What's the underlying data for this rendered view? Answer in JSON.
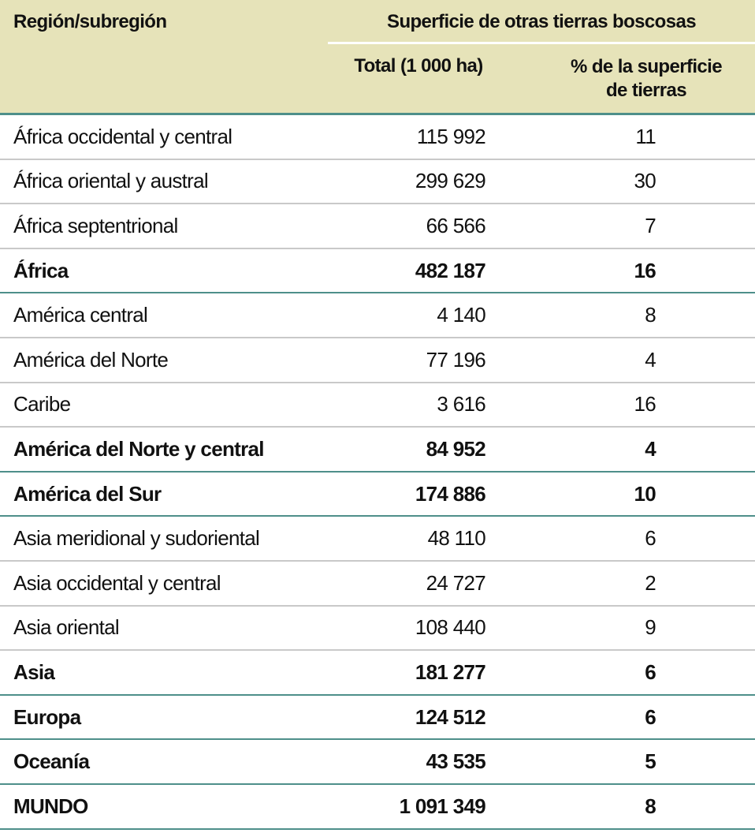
{
  "header": {
    "region": "Región/subregión",
    "group": "Superficie de otras tierras boscosas",
    "total": "Total (1 000 ha)",
    "pct_line1": "% de la superficie",
    "pct_line2": "de tierras"
  },
  "colors": {
    "header_bg": "#E6E3B9",
    "accent_rule": "#4E8F8A",
    "row_rule": "#C9C9C9"
  },
  "rows": [
    {
      "name": "África occidental y central",
      "total": "115 992",
      "pct": "11",
      "bold": false
    },
    {
      "name": "África oriental y austral",
      "total": "299 629",
      "pct": "30",
      "bold": false
    },
    {
      "name": "África septentrional",
      "total": "66 566",
      "pct": "7",
      "bold": false
    },
    {
      "name": "África",
      "total": "482 187",
      "pct": "16",
      "bold": true
    },
    {
      "name": "América central",
      "total": "4 140",
      "pct": "8",
      "bold": false
    },
    {
      "name": "América del Norte",
      "total": "77 196",
      "pct": "4",
      "bold": false
    },
    {
      "name": "Caribe",
      "total": "3 616",
      "pct": "16",
      "bold": false
    },
    {
      "name": "América del Norte y central",
      "total": "84 952",
      "pct": "4",
      "bold": true
    },
    {
      "name": "América del Sur",
      "total": "174 886",
      "pct": "10",
      "bold": true
    },
    {
      "name": "Asia meridional y sudoriental",
      "total": "48 110",
      "pct": "6",
      "bold": false
    },
    {
      "name": "Asia occidental y central",
      "total": "24 727",
      "pct": "2",
      "bold": false
    },
    {
      "name": "Asia oriental",
      "total": "108 440",
      "pct": "9",
      "bold": false
    },
    {
      "name": "Asia",
      "total": "181 277",
      "pct": "6",
      "bold": true
    },
    {
      "name": "Europa",
      "total": "124 512",
      "pct": "6",
      "bold": true
    },
    {
      "name": "Oceanía",
      "total": "43 535",
      "pct": "5",
      "bold": true
    },
    {
      "name": "MUNDO",
      "total": "1 091 349",
      "pct": "8",
      "bold": true
    }
  ]
}
